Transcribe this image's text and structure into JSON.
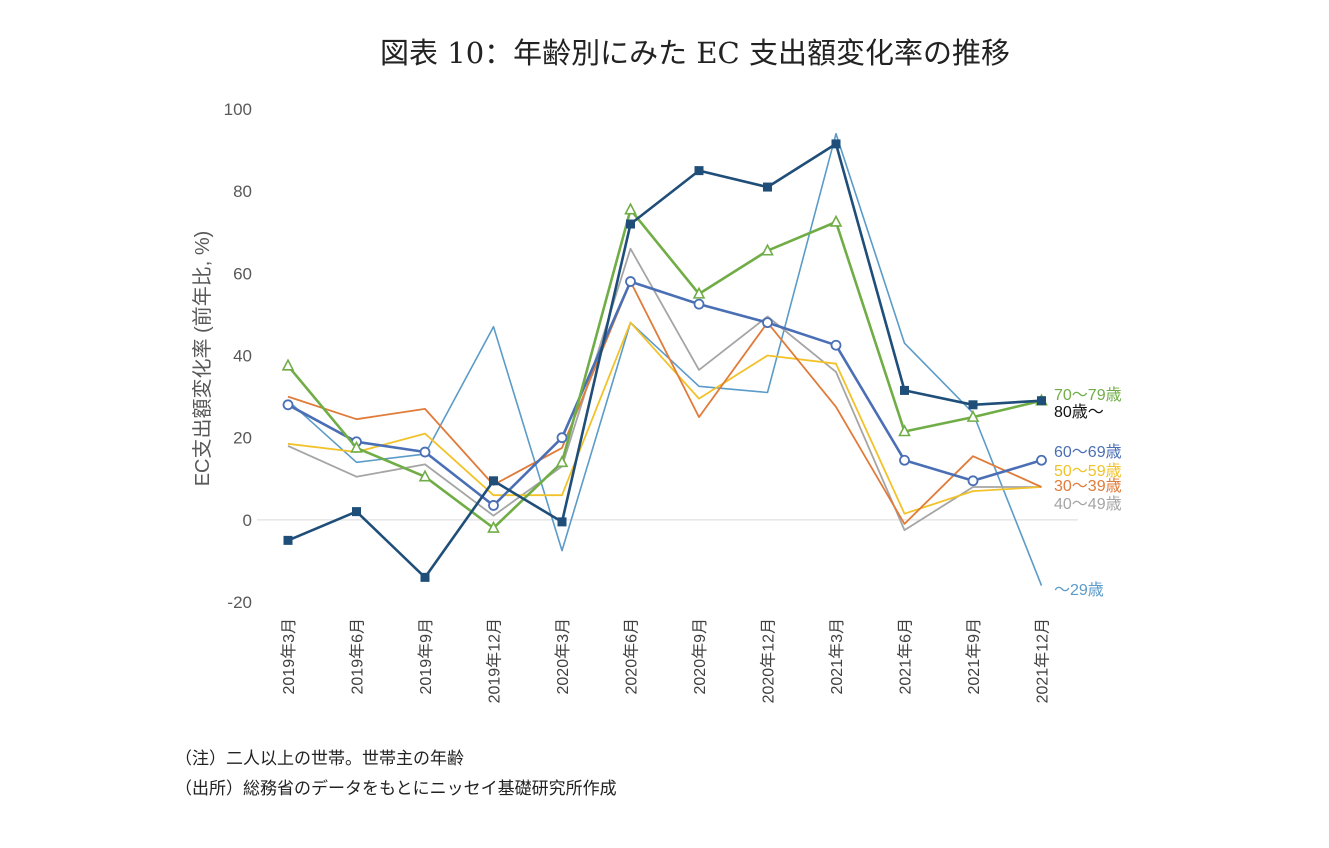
{
  "title": "図表 10：年齢別にみた EC 支出額変化率の推移",
  "notes": {
    "note": "（注）二人以上の世帯。世帯主の年齢",
    "source": "（出所）総務省のデータをもとにニッセイ基礎研究所作成"
  },
  "chart_data": {
    "type": "line",
    "title": "図表 10：年齢別にみた EC 支出額変化率の推移",
    "xlabel": "",
    "ylabel": "EC支出額変化率 (前年比, %)",
    "ylim": [
      -20,
      100
    ],
    "yticks": [
      -20,
      0,
      20,
      40,
      60,
      80,
      100
    ],
    "grid": false,
    "zero_line": true,
    "legend": "direct-labels-right",
    "categories": [
      "2019年3月",
      "2019年6月",
      "2019年9月",
      "2019年12月",
      "2020年3月",
      "2020年6月",
      "2020年9月",
      "2020年12月",
      "2021年3月",
      "2021年6月",
      "2021年9月",
      "2021年12月"
    ],
    "series": [
      {
        "name": "〜29歳",
        "color": "#5b9bc8",
        "marker": "none",
        "width": 1.6,
        "values": [
          29,
          14,
          16,
          47,
          -7.5,
          48,
          32.5,
          31,
          94,
          43,
          26,
          -16
        ]
      },
      {
        "name": "40〜49歳",
        "color": "#a5a5a5",
        "marker": "none",
        "width": 1.8,
        "values": [
          18,
          10.5,
          13.5,
          1,
          13,
          66,
          36.5,
          49.5,
          36,
          -2.5,
          8,
          8
        ]
      },
      {
        "name": "50〜59歳",
        "color": "#f2c22a",
        "marker": "none",
        "width": 1.8,
        "values": [
          18.5,
          16.5,
          21,
          6,
          6,
          48,
          29.5,
          40,
          38,
          1.5,
          7,
          8
        ]
      },
      {
        "name": "30〜39歳",
        "color": "#e07b39",
        "marker": "none",
        "width": 1.8,
        "values": [
          30,
          24.5,
          27,
          8.5,
          17.5,
          58,
          25,
          48,
          27.5,
          -1,
          15.5,
          8
        ]
      },
      {
        "name": "60〜69歳",
        "color": "#4a6fb5",
        "marker": "circle",
        "width": 2.6,
        "values": [
          28,
          19,
          16.5,
          3.5,
          20,
          58,
          52.5,
          48,
          42.5,
          14.5,
          9.5,
          14.5
        ]
      },
      {
        "name": "70〜79歳",
        "color": "#70ad47",
        "marker": "triangle",
        "width": 2.6,
        "values": [
          37.5,
          17.5,
          10.5,
          -2,
          14,
          75.5,
          55,
          65.5,
          72.5,
          21.5,
          25,
          29
        ]
      },
      {
        "name": "80歳〜",
        "color": "#1f4e79",
        "marker": "square",
        "width": 2.6,
        "values": [
          -5,
          2,
          -14,
          9.5,
          -0.5,
          72,
          85,
          81,
          91.5,
          31.5,
          28,
          29
        ]
      }
    ],
    "direct_labels": [
      {
        "series": "70〜79歳",
        "text": "70〜79歳",
        "color": "#70ad47"
      },
      {
        "series": "80歳〜",
        "text": "80歳〜",
        "color": "#111111"
      },
      {
        "series": "60〜69歳",
        "text": "60〜69歳",
        "color": "#4a6fb5"
      },
      {
        "series": "50〜59歳",
        "text": "50〜59歳",
        "color": "#f2c22a"
      },
      {
        "series": "30〜39歳",
        "text": "30〜39歳",
        "color": "#e07b39"
      },
      {
        "series": "40〜49歳",
        "text": "40〜49歳",
        "color": "#a5a5a5"
      },
      {
        "series": "〜29歳",
        "text": "〜29歳",
        "color": "#5b9bc8"
      }
    ]
  }
}
